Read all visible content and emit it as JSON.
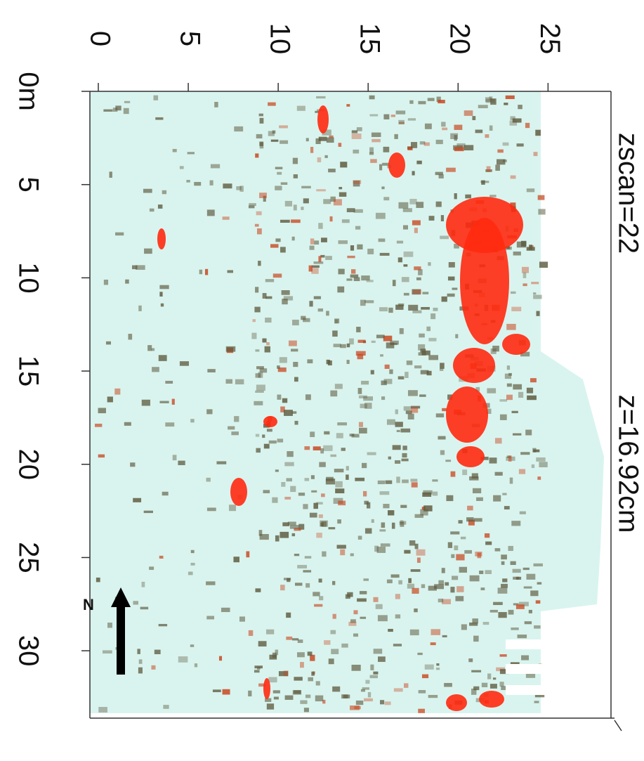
{
  "map": {
    "scan_label": "zscan=22",
    "depth_label": "z=16.92cm",
    "north_label": "N",
    "top_axis": {
      "lim": [
        0,
        28.5
      ],
      "ticks": [
        0,
        5,
        10,
        15,
        20,
        25
      ]
    },
    "left_axis": {
      "lim": [
        0,
        33.5
      ],
      "ticks": [
        {
          "value": 0,
          "label": "0m"
        },
        5,
        10,
        15,
        20,
        25,
        30
      ]
    }
  }
}
